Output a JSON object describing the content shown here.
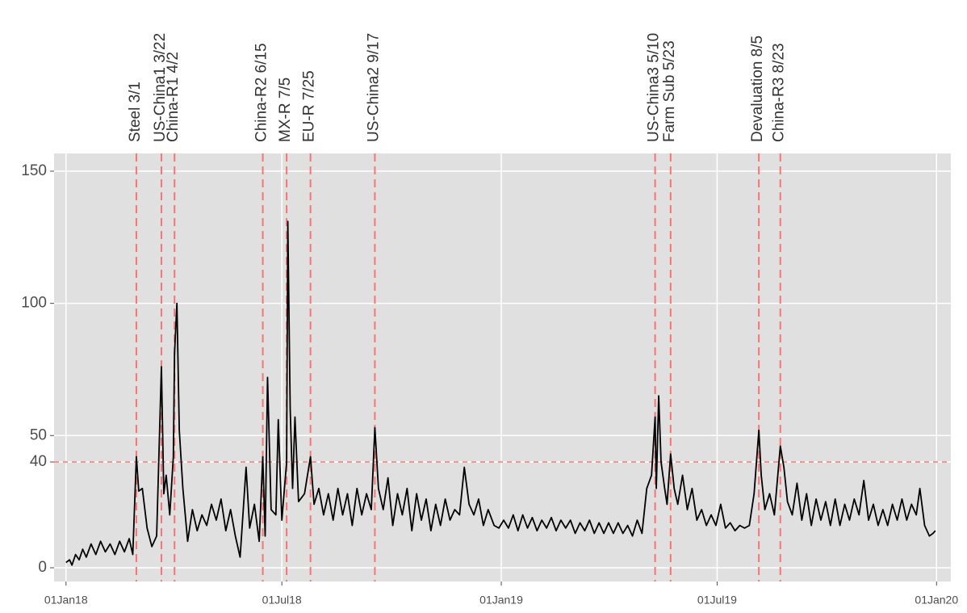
{
  "chart_data": {
    "type": "line",
    "color": "#000000",
    "grid": true,
    "xlim": [
      "2017-12-22",
      "2020-01-13"
    ],
    "xticks": [
      {
        "value": "2018-01-01",
        "label": "01Jan18"
      },
      {
        "value": "2018-07-01",
        "label": "01Jul18"
      },
      {
        "value": "2019-01-01",
        "label": "01Jan19"
      },
      {
        "value": "2019-07-01",
        "label": "01Jul19"
      },
      {
        "value": "2020-01-01",
        "label": "01Jan20"
      }
    ],
    "ylim": [
      -5.2,
      156.7
    ],
    "yticks": [
      0,
      40,
      50,
      100,
      150
    ],
    "threshold": 40,
    "threshold_color": "#f8766d",
    "events": [
      {
        "label": "Steel 3/1",
        "date": "2018-03-01"
      },
      {
        "label": "US-China1 3/22",
        "date": "2018-03-22"
      },
      {
        "label": "China-R1 4/2",
        "date": "2018-04-02"
      },
      {
        "label": "China-R2 6/15",
        "date": "2018-06-15"
      },
      {
        "label": "MX-R 7/5",
        "date": "2018-07-05"
      },
      {
        "label": "EU-R 7/25",
        "date": "2018-07-25"
      },
      {
        "label": "US-China2 9/17",
        "date": "2018-09-17"
      },
      {
        "label": "US-China3 5/10",
        "date": "2019-05-10"
      },
      {
        "label": "Farm Sub 5/23",
        "date": "2019-05-23"
      },
      {
        "label": "Devaluation 8/5",
        "date": "2019-08-05"
      },
      {
        "label": "China-R3 8/23",
        "date": "2019-08-23"
      }
    ],
    "x": [
      "2018-01-01",
      "2018-01-04",
      "2018-01-06",
      "2018-01-09",
      "2018-01-12",
      "2018-01-15",
      "2018-01-18",
      "2018-01-22",
      "2018-01-26",
      "2018-01-30",
      "2018-02-03",
      "2018-02-07",
      "2018-02-11",
      "2018-02-15",
      "2018-02-19",
      "2018-02-23",
      "2018-02-26",
      "2018-03-01",
      "2018-03-03",
      "2018-03-06",
      "2018-03-10",
      "2018-03-14",
      "2018-03-18",
      "2018-03-22",
      "2018-03-24",
      "2018-03-26",
      "2018-03-29",
      "2018-04-01",
      "2018-04-02",
      "2018-04-04",
      "2018-04-06",
      "2018-04-09",
      "2018-04-13",
      "2018-04-17",
      "2018-04-21",
      "2018-04-25",
      "2018-04-29",
      "2018-05-03",
      "2018-05-07",
      "2018-05-11",
      "2018-05-15",
      "2018-05-19",
      "2018-05-23",
      "2018-05-27",
      "2018-06-01",
      "2018-06-04",
      "2018-06-08",
      "2018-06-12",
      "2018-06-15",
      "2018-06-17",
      "2018-06-19",
      "2018-06-22",
      "2018-06-26",
      "2018-06-28",
      "2018-07-01",
      "2018-07-05",
      "2018-07-06",
      "2018-07-08",
      "2018-07-10",
      "2018-07-12",
      "2018-07-15",
      "2018-07-20",
      "2018-07-25",
      "2018-07-28",
      "2018-08-01",
      "2018-08-05",
      "2018-08-09",
      "2018-08-13",
      "2018-08-17",
      "2018-08-21",
      "2018-08-25",
      "2018-08-29",
      "2018-09-02",
      "2018-09-06",
      "2018-09-10",
      "2018-09-14",
      "2018-09-17",
      "2018-09-20",
      "2018-09-24",
      "2018-09-28",
      "2018-10-02",
      "2018-10-06",
      "2018-10-10",
      "2018-10-14",
      "2018-10-18",
      "2018-10-22",
      "2018-10-26",
      "2018-10-30",
      "2018-11-03",
      "2018-11-07",
      "2018-11-11",
      "2018-11-15",
      "2018-11-19",
      "2018-11-23",
      "2018-11-27",
      "2018-12-01",
      "2018-12-05",
      "2018-12-09",
      "2018-12-13",
      "2018-12-17",
      "2018-12-21",
      "2018-12-26",
      "2018-12-30",
      "2019-01-03",
      "2019-01-07",
      "2019-01-11",
      "2019-01-15",
      "2019-01-19",
      "2019-01-23",
      "2019-01-27",
      "2019-01-31",
      "2019-02-04",
      "2019-02-08",
      "2019-02-12",
      "2019-02-16",
      "2019-02-20",
      "2019-02-24",
      "2019-02-28",
      "2019-03-04",
      "2019-03-08",
      "2019-03-12",
      "2019-03-16",
      "2019-03-20",
      "2019-03-24",
      "2019-03-28",
      "2019-04-01",
      "2019-04-05",
      "2019-04-09",
      "2019-04-13",
      "2019-04-17",
      "2019-04-21",
      "2019-04-25",
      "2019-04-29",
      "2019-05-03",
      "2019-05-07",
      "2019-05-10",
      "2019-05-11",
      "2019-05-13",
      "2019-05-15",
      "2019-05-18",
      "2019-05-20",
      "2019-05-23",
      "2019-05-26",
      "2019-05-29",
      "2019-06-02",
      "2019-06-06",
      "2019-06-10",
      "2019-06-14",
      "2019-06-18",
      "2019-06-22",
      "2019-06-26",
      "2019-06-30",
      "2019-07-04",
      "2019-07-08",
      "2019-07-12",
      "2019-07-16",
      "2019-07-20",
      "2019-07-24",
      "2019-07-28",
      "2019-08-01",
      "2019-08-05",
      "2019-08-07",
      "2019-08-10",
      "2019-08-14",
      "2019-08-18",
      "2019-08-23",
      "2019-08-26",
      "2019-08-29",
      "2019-09-02",
      "2019-09-06",
      "2019-09-10",
      "2019-09-14",
      "2019-09-18",
      "2019-09-22",
      "2019-09-26",
      "2019-09-30",
      "2019-10-04",
      "2019-10-08",
      "2019-10-12",
      "2019-10-16",
      "2019-10-20",
      "2019-10-24",
      "2019-10-28",
      "2019-11-01",
      "2019-11-05",
      "2019-11-09",
      "2019-11-13",
      "2019-11-17",
      "2019-11-21",
      "2019-11-25",
      "2019-11-29",
      "2019-12-03",
      "2019-12-07",
      "2019-12-11",
      "2019-12-15",
      "2019-12-18",
      "2019-12-22",
      "2019-12-26",
      "2019-12-29",
      "2019-12-31"
    ],
    "values": [
      2,
      3,
      1,
      5,
      3,
      7,
      4,
      9,
      5,
      10,
      6,
      9,
      5,
      10,
      6,
      11,
      5,
      42,
      29,
      30,
      15,
      8,
      12,
      76,
      28,
      35,
      20,
      42,
      81,
      100,
      52,
      30,
      10,
      22,
      14,
      20,
      16,
      24,
      18,
      26,
      14,
      22,
      12,
      4,
      38,
      15,
      24,
      10,
      42,
      12,
      72,
      22,
      20,
      56,
      18,
      40,
      131,
      60,
      30,
      57,
      25,
      28,
      42,
      24,
      30,
      20,
      28,
      18,
      30,
      20,
      28,
      16,
      30,
      20,
      28,
      22,
      53,
      30,
      22,
      34,
      16,
      28,
      20,
      30,
      14,
      28,
      18,
      26,
      14,
      24,
      16,
      26,
      18,
      22,
      20,
      38,
      24,
      20,
      26,
      16,
      22,
      16,
      15,
      18,
      15,
      20,
      14,
      20,
      15,
      19,
      14,
      18,
      15,
      19,
      14,
      18,
      15,
      18,
      13,
      17,
      14,
      18,
      13,
      17,
      13,
      17,
      13,
      17,
      13,
      16,
      12,
      18,
      13,
      30,
      35,
      57,
      30,
      65,
      40,
      30,
      24,
      43,
      30,
      24,
      35,
      22,
      30,
      18,
      22,
      16,
      20,
      16,
      24,
      15,
      17,
      14,
      16,
      15,
      16,
      28,
      52,
      35,
      22,
      28,
      20,
      46,
      38,
      25,
      20,
      32,
      18,
      28,
      16,
      26,
      18,
      25,
      16,
      26,
      16,
      24,
      18,
      26,
      20,
      33,
      18,
      24,
      16,
      22,
      16,
      24,
      18,
      26,
      18,
      24,
      20,
      30,
      16,
      12,
      13,
      14
    ]
  }
}
